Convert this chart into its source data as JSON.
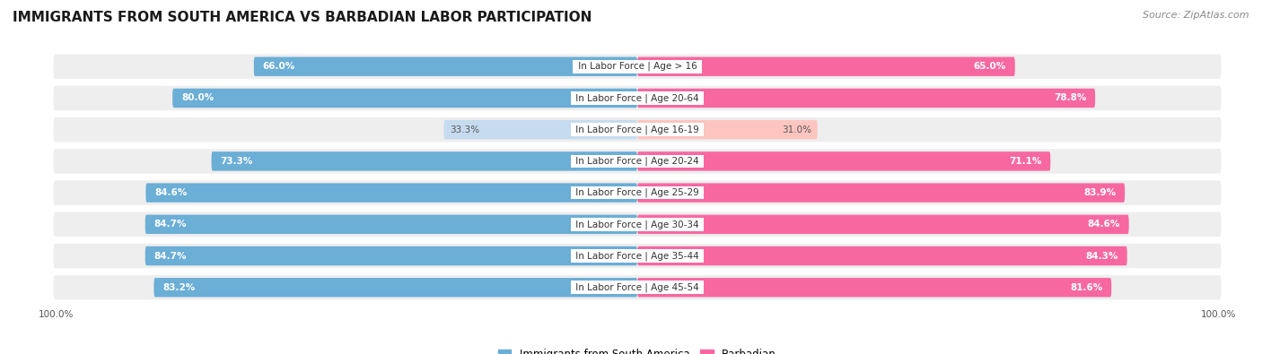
{
  "title": "IMMIGRANTS FROM SOUTH AMERICA VS BARBADIAN LABOR PARTICIPATION",
  "source": "Source: ZipAtlas.com",
  "categories": [
    "In Labor Force | Age > 16",
    "In Labor Force | Age 20-64",
    "In Labor Force | Age 16-19",
    "In Labor Force | Age 20-24",
    "In Labor Force | Age 25-29",
    "In Labor Force | Age 30-34",
    "In Labor Force | Age 35-44",
    "In Labor Force | Age 45-54"
  ],
  "south_america_values": [
    66.0,
    80.0,
    33.3,
    73.3,
    84.6,
    84.7,
    84.7,
    83.2
  ],
  "barbadian_values": [
    65.0,
    78.8,
    31.0,
    71.1,
    83.9,
    84.6,
    84.3,
    81.6
  ],
  "blue_color": "#6baed6",
  "pink_color": "#f768a1",
  "blue_light_color": "#c6dbef",
  "pink_light_color": "#fcc5c0",
  "bg_row_color": "#eeeeee",
  "bg_color": "#ffffff",
  "title_fontsize": 11,
  "source_fontsize": 8,
  "label_fontsize": 7.5,
  "value_fontsize": 7.5,
  "legend_fontsize": 8.5,
  "axis_label_fontsize": 7.5,
  "x_max": 100,
  "low_threshold": 50
}
